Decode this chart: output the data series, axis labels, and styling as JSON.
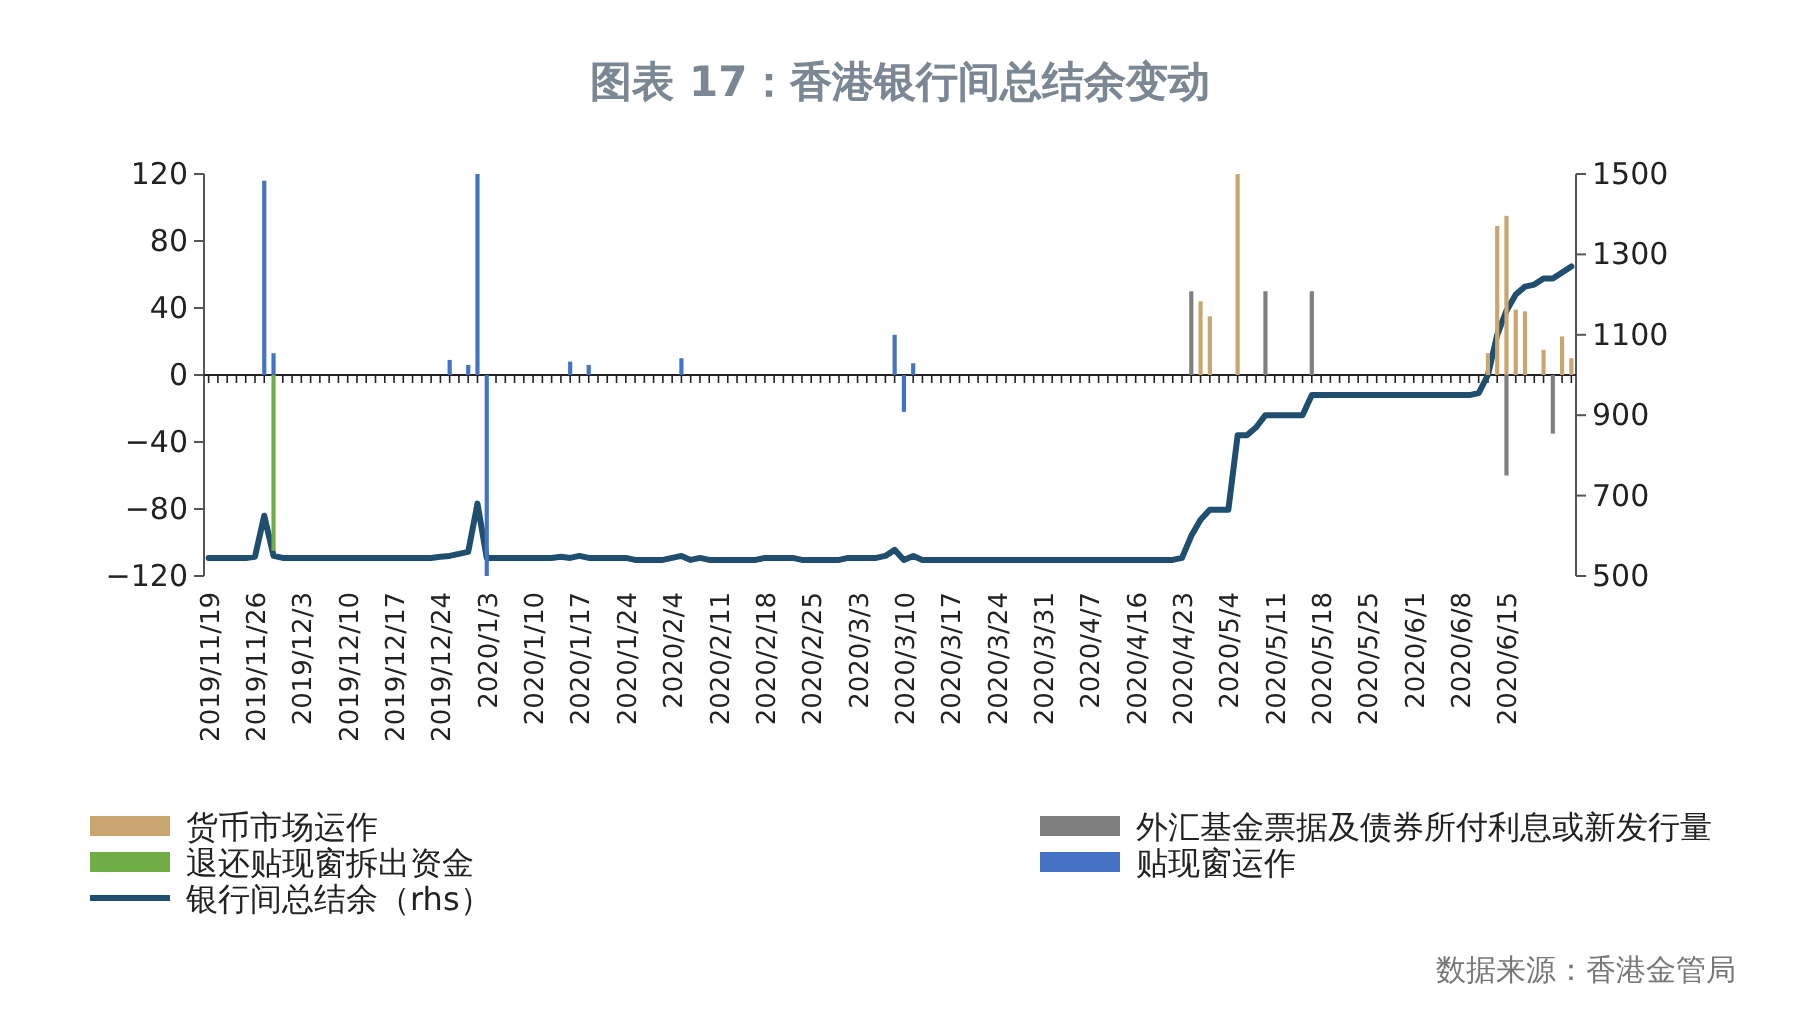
{
  "chart_data": {
    "type": "bar",
    "title": "图表 17：香港银行间总结余变动",
    "categories": [
      "2019/11/19",
      null,
      null,
      null,
      null,
      "2019/11/26",
      null,
      null,
      null,
      null,
      "2019/12/3",
      null,
      null,
      null,
      null,
      "2019/12/10",
      null,
      null,
      null,
      null,
      "2019/12/17",
      null,
      null,
      null,
      null,
      "2019/12/24",
      null,
      null,
      null,
      null,
      "2020/1/3",
      null,
      null,
      null,
      null,
      "2020/1/10",
      null,
      null,
      null,
      null,
      "2020/1/17",
      null,
      null,
      null,
      null,
      "2020/1/24",
      null,
      null,
      null,
      null,
      "2020/2/4",
      null,
      null,
      null,
      null,
      "2020/2/11",
      null,
      null,
      null,
      null,
      "2020/2/18",
      null,
      null,
      null,
      null,
      "2020/2/25",
      null,
      null,
      null,
      null,
      "2020/3/3",
      null,
      null,
      null,
      null,
      "2020/3/10",
      null,
      null,
      null,
      null,
      "2020/3/17",
      null,
      null,
      null,
      null,
      "2020/3/24",
      null,
      null,
      null,
      null,
      "2020/3/31",
      null,
      null,
      null,
      null,
      "2020/4/7",
      null,
      null,
      null,
      null,
      "2020/4/16",
      null,
      null,
      null,
      null,
      "2020/4/23",
      null,
      null,
      null,
      null,
      "2020/5/4",
      null,
      null,
      null,
      null,
      "2020/5/11",
      null,
      null,
      null,
      null,
      "2020/5/18",
      null,
      null,
      null,
      null,
      "2020/5/25",
      null,
      null,
      null,
      null,
      "2020/6/1",
      null,
      null,
      null,
      null,
      "2020/6/8",
      null,
      null,
      null,
      null,
      "2020/6/15",
      null,
      null,
      null,
      null,
      null,
      null,
      null
    ],
    "series": [
      {
        "name": "货币市场运作",
        "color": "#c9a56f",
        "values": [
          null,
          null,
          null,
          null,
          null,
          null,
          null,
          null,
          null,
          null,
          null,
          null,
          null,
          null,
          null,
          null,
          null,
          null,
          null,
          null,
          null,
          null,
          null,
          null,
          null,
          null,
          null,
          null,
          null,
          null,
          null,
          null,
          null,
          null,
          null,
          null,
          null,
          null,
          null,
          null,
          null,
          null,
          null,
          null,
          null,
          null,
          null,
          null,
          null,
          null,
          null,
          null,
          null,
          null,
          null,
          null,
          null,
          null,
          null,
          null,
          null,
          null,
          null,
          null,
          null,
          null,
          null,
          null,
          null,
          null,
          null,
          null,
          null,
          null,
          null,
          null,
          null,
          null,
          null,
          null,
          null,
          null,
          null,
          null,
          null,
          null,
          null,
          null,
          null,
          null,
          null,
          null,
          null,
          null,
          null,
          null,
          null,
          null,
          null,
          null,
          null,
          null,
          null,
          null,
          null,
          null,
          null,
          44,
          35,
          null,
          null,
          120,
          null,
          null,
          null,
          null,
          null,
          null,
          null,
          null,
          null,
          null,
          null,
          null,
          null,
          null,
          null,
          null,
          null,
          null,
          null,
          null,
          null,
          null,
          null,
          null,
          null,
          null,
          13,
          89,
          95,
          39,
          38,
          null,
          15,
          null,
          23,
          10
        ]
      },
      {
        "name": "外汇基金票据及债券所付利息或新发行量",
        "color": "#7f7f7f",
        "values": [
          null,
          null,
          null,
          null,
          null,
          null,
          null,
          null,
          null,
          null,
          null,
          null,
          null,
          null,
          null,
          null,
          null,
          null,
          null,
          null,
          null,
          null,
          null,
          null,
          null,
          null,
          null,
          null,
          null,
          null,
          null,
          null,
          null,
          null,
          null,
          null,
          null,
          null,
          null,
          null,
          null,
          null,
          null,
          null,
          null,
          null,
          null,
          null,
          null,
          null,
          null,
          null,
          null,
          null,
          null,
          null,
          null,
          null,
          null,
          null,
          null,
          null,
          null,
          null,
          null,
          null,
          null,
          null,
          null,
          null,
          null,
          null,
          null,
          null,
          null,
          null,
          null,
          null,
          null,
          null,
          null,
          null,
          null,
          null,
          null,
          null,
          null,
          null,
          null,
          null,
          null,
          null,
          null,
          null,
          null,
          null,
          null,
          null,
          null,
          null,
          null,
          null,
          null,
          null,
          null,
          null,
          50,
          null,
          null,
          null,
          null,
          null,
          null,
          null,
          50,
          null,
          null,
          null,
          null,
          50,
          null,
          null,
          null,
          null,
          null,
          null,
          null,
          null,
          null,
          null,
          null,
          null,
          null,
          null,
          null,
          null,
          null,
          null,
          null,
          null,
          -60,
          null,
          null,
          null,
          null,
          -35,
          null,
          null
        ]
      },
      {
        "name": "退还贴现窗拆出资金",
        "color": "#70ad47",
        "values": [
          null,
          null,
          null,
          null,
          null,
          null,
          null,
          -105,
          null,
          null,
          null,
          null,
          null,
          null,
          null,
          null,
          null,
          null,
          null,
          null,
          null,
          null,
          null,
          null,
          null,
          null,
          null,
          null,
          null,
          null,
          null,
          null,
          null,
          null,
          null,
          null,
          null,
          null,
          null,
          null,
          null,
          null,
          null,
          null,
          null,
          null,
          null,
          null,
          null,
          null,
          null,
          null,
          null,
          null,
          null,
          null,
          null,
          null,
          null,
          null,
          null,
          null,
          null,
          null,
          null,
          null,
          null,
          null,
          null,
          null,
          null,
          null,
          null,
          null,
          null,
          null,
          null,
          null,
          null,
          null,
          null,
          null,
          null,
          null,
          null,
          null,
          null,
          null,
          null,
          null,
          null,
          null,
          null,
          null,
          null,
          null,
          null,
          null,
          null,
          null,
          null,
          null,
          null,
          null,
          null,
          null,
          null,
          null,
          null,
          null,
          null,
          null,
          null,
          null,
          null,
          null,
          null,
          null,
          null,
          null,
          null,
          null,
          null,
          null,
          null,
          null,
          null,
          null,
          null,
          null,
          null,
          null,
          null,
          null,
          null,
          null,
          null,
          null,
          null,
          null,
          null,
          null,
          null,
          null,
          null,
          null,
          null,
          null
        ]
      },
      {
        "name": "贴现窗运作",
        "color": "#4472c4",
        "values": [
          null,
          null,
          null,
          null,
          null,
          null,
          116,
          13,
          null,
          null,
          null,
          null,
          null,
          null,
          null,
          null,
          null,
          null,
          null,
          null,
          null,
          null,
          null,
          null,
          null,
          null,
          9,
          null,
          6,
          120,
          -120,
          null,
          null,
          null,
          null,
          null,
          null,
          null,
          null,
          8,
          null,
          6,
          null,
          null,
          null,
          null,
          null,
          null,
          null,
          null,
          null,
          10,
          null,
          null,
          null,
          null,
          null,
          null,
          null,
          null,
          null,
          null,
          null,
          null,
          null,
          null,
          null,
          null,
          null,
          null,
          null,
          null,
          null,
          null,
          24,
          -22,
          7,
          null,
          null,
          null,
          null,
          null,
          null,
          null,
          null,
          null,
          null,
          null,
          null,
          null,
          null,
          null,
          null,
          null,
          null,
          null,
          null,
          null,
          null,
          null,
          null,
          null,
          null,
          null,
          null,
          null,
          null,
          null,
          null,
          null,
          null,
          null,
          null,
          null,
          null,
          null,
          null,
          null,
          null,
          null,
          null,
          null,
          null,
          null,
          null,
          null,
          null,
          null,
          null,
          null,
          null,
          null,
          null,
          null,
          null,
          null,
          null,
          null,
          null,
          null,
          null,
          null,
          null,
          null,
          null,
          null,
          null,
          null
        ]
      },
      {
        "name": "银行间总结余（rhs）",
        "type": "line",
        "axis": "y2",
        "color": "#1f4e6e",
        "values": [
          545,
          545,
          545,
          545,
          545,
          548,
          650,
          550,
          545,
          545,
          545,
          545,
          545,
          545,
          545,
          545,
          545,
          545,
          545,
          545,
          545,
          545,
          545,
          545,
          545,
          548,
          550,
          555,
          560,
          680,
          545,
          545,
          545,
          545,
          545,
          545,
          545,
          545,
          548,
          545,
          550,
          545,
          545,
          545,
          545,
          545,
          540,
          540,
          540,
          540,
          545,
          550,
          540,
          545,
          540,
          540,
          540,
          540,
          540,
          540,
          545,
          545,
          545,
          545,
          540,
          540,
          540,
          540,
          540,
          545,
          545,
          545,
          545,
          550,
          565,
          540,
          550,
          540,
          540,
          540,
          540,
          540,
          540,
          540,
          540,
          540,
          540,
          540,
          540,
          540,
          540,
          540,
          540,
          540,
          540,
          540,
          540,
          540,
          540,
          540,
          540,
          540,
          540,
          540,
          540,
          545,
          600,
          640,
          665,
          665,
          665,
          850,
          850,
          870,
          900,
          900,
          900,
          900,
          900,
          950,
          950,
          950,
          950,
          950,
          950,
          950,
          950,
          950,
          950,
          950,
          950,
          950,
          950,
          950,
          950,
          950,
          950,
          955,
          1000,
          1100,
          1160,
          1200,
          1220,
          1225,
          1240,
          1240,
          1255,
          1270
        ]
      }
    ],
    "ylim": [
      -120,
      120
    ],
    "yticks": [
      -120,
      -80,
      -40,
      0,
      40,
      80,
      120
    ],
    "y2lim": [
      500,
      1500
    ],
    "y2ticks": [
      500,
      700,
      900,
      1100,
      1300,
      1500
    ],
    "legend": "bottom",
    "annotations": [
      "数据来源：香港金管局"
    ]
  }
}
